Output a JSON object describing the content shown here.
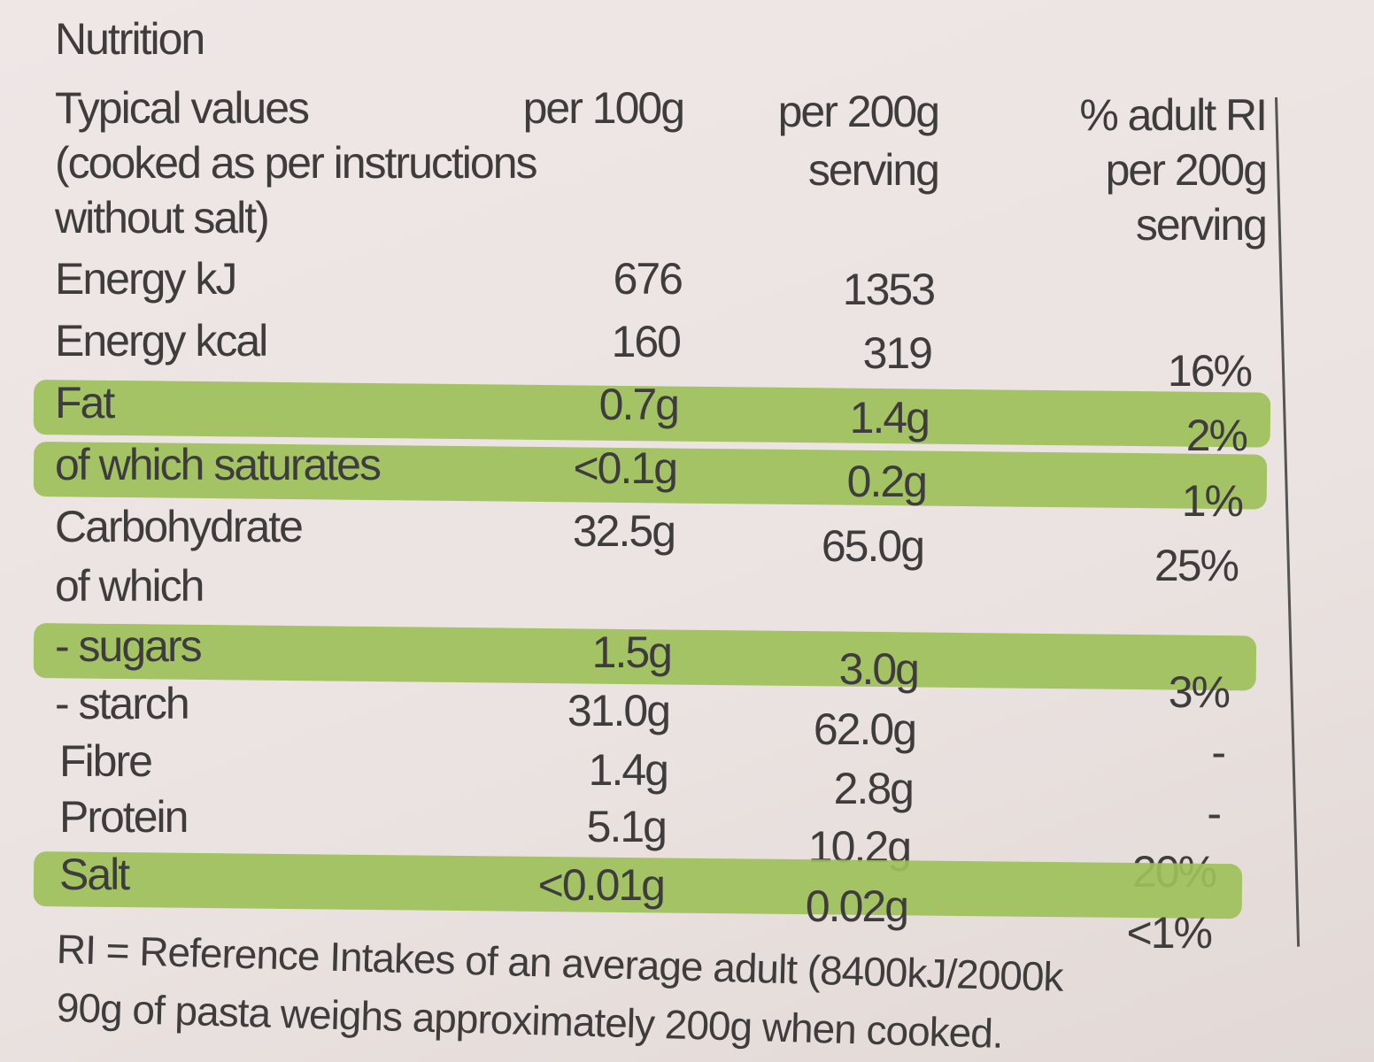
{
  "title": "Nutrition",
  "header": {
    "label": [
      "Typical values",
      "(cooked as per instructions",
      "without salt)"
    ],
    "per100": [
      "per 100g"
    ],
    "per200": [
      "per 200g",
      "serving"
    ],
    "ri": [
      "% adult RI",
      "per 200g",
      "serving"
    ]
  },
  "table": {
    "rows": [
      {
        "name": "Energy kJ",
        "per100": "676",
        "per200": "1353"
      },
      {
        "name": "Energy kcal",
        "per100": "160",
        "per200": "319",
        "ri": "16%"
      },
      {
        "name": "Fat",
        "per100": "0.7g",
        "per200": "1.4g",
        "ri": "2%",
        "highlight": true
      },
      {
        "name": "of which saturates",
        "per100": "<0.1g",
        "per200": "0.2g",
        "ri": "1%",
        "highlight": true
      },
      {
        "name": "Carbohydrate",
        "per100": "32.5g",
        "per200": "65.0g",
        "ri": "25%"
      },
      {
        "name": "of which"
      },
      {
        "name": "- sugars",
        "per100": "1.5g",
        "per200": "3.0g",
        "ri": "3%",
        "highlight": true
      },
      {
        "name": "- starch",
        "per100": "31.0g",
        "per200": "62.0g",
        "ri": "-"
      },
      {
        "name": "Fibre",
        "per100": "1.4g",
        "per200": "2.8g",
        "ri": "-"
      },
      {
        "name": "Protein",
        "per100": "5.1g",
        "per200": "10.2g",
        "ri": "20%"
      },
      {
        "name": "Salt",
        "per100": "<0.01g",
        "per200": "0.02g",
        "ri": "<1%",
        "highlight": true
      }
    ]
  },
  "footer": [
    "RI = Reference Intakes of an average adult (8400kJ/2000k",
    "90g of pasta weighs approximately 200g when cooked."
  ]
}
